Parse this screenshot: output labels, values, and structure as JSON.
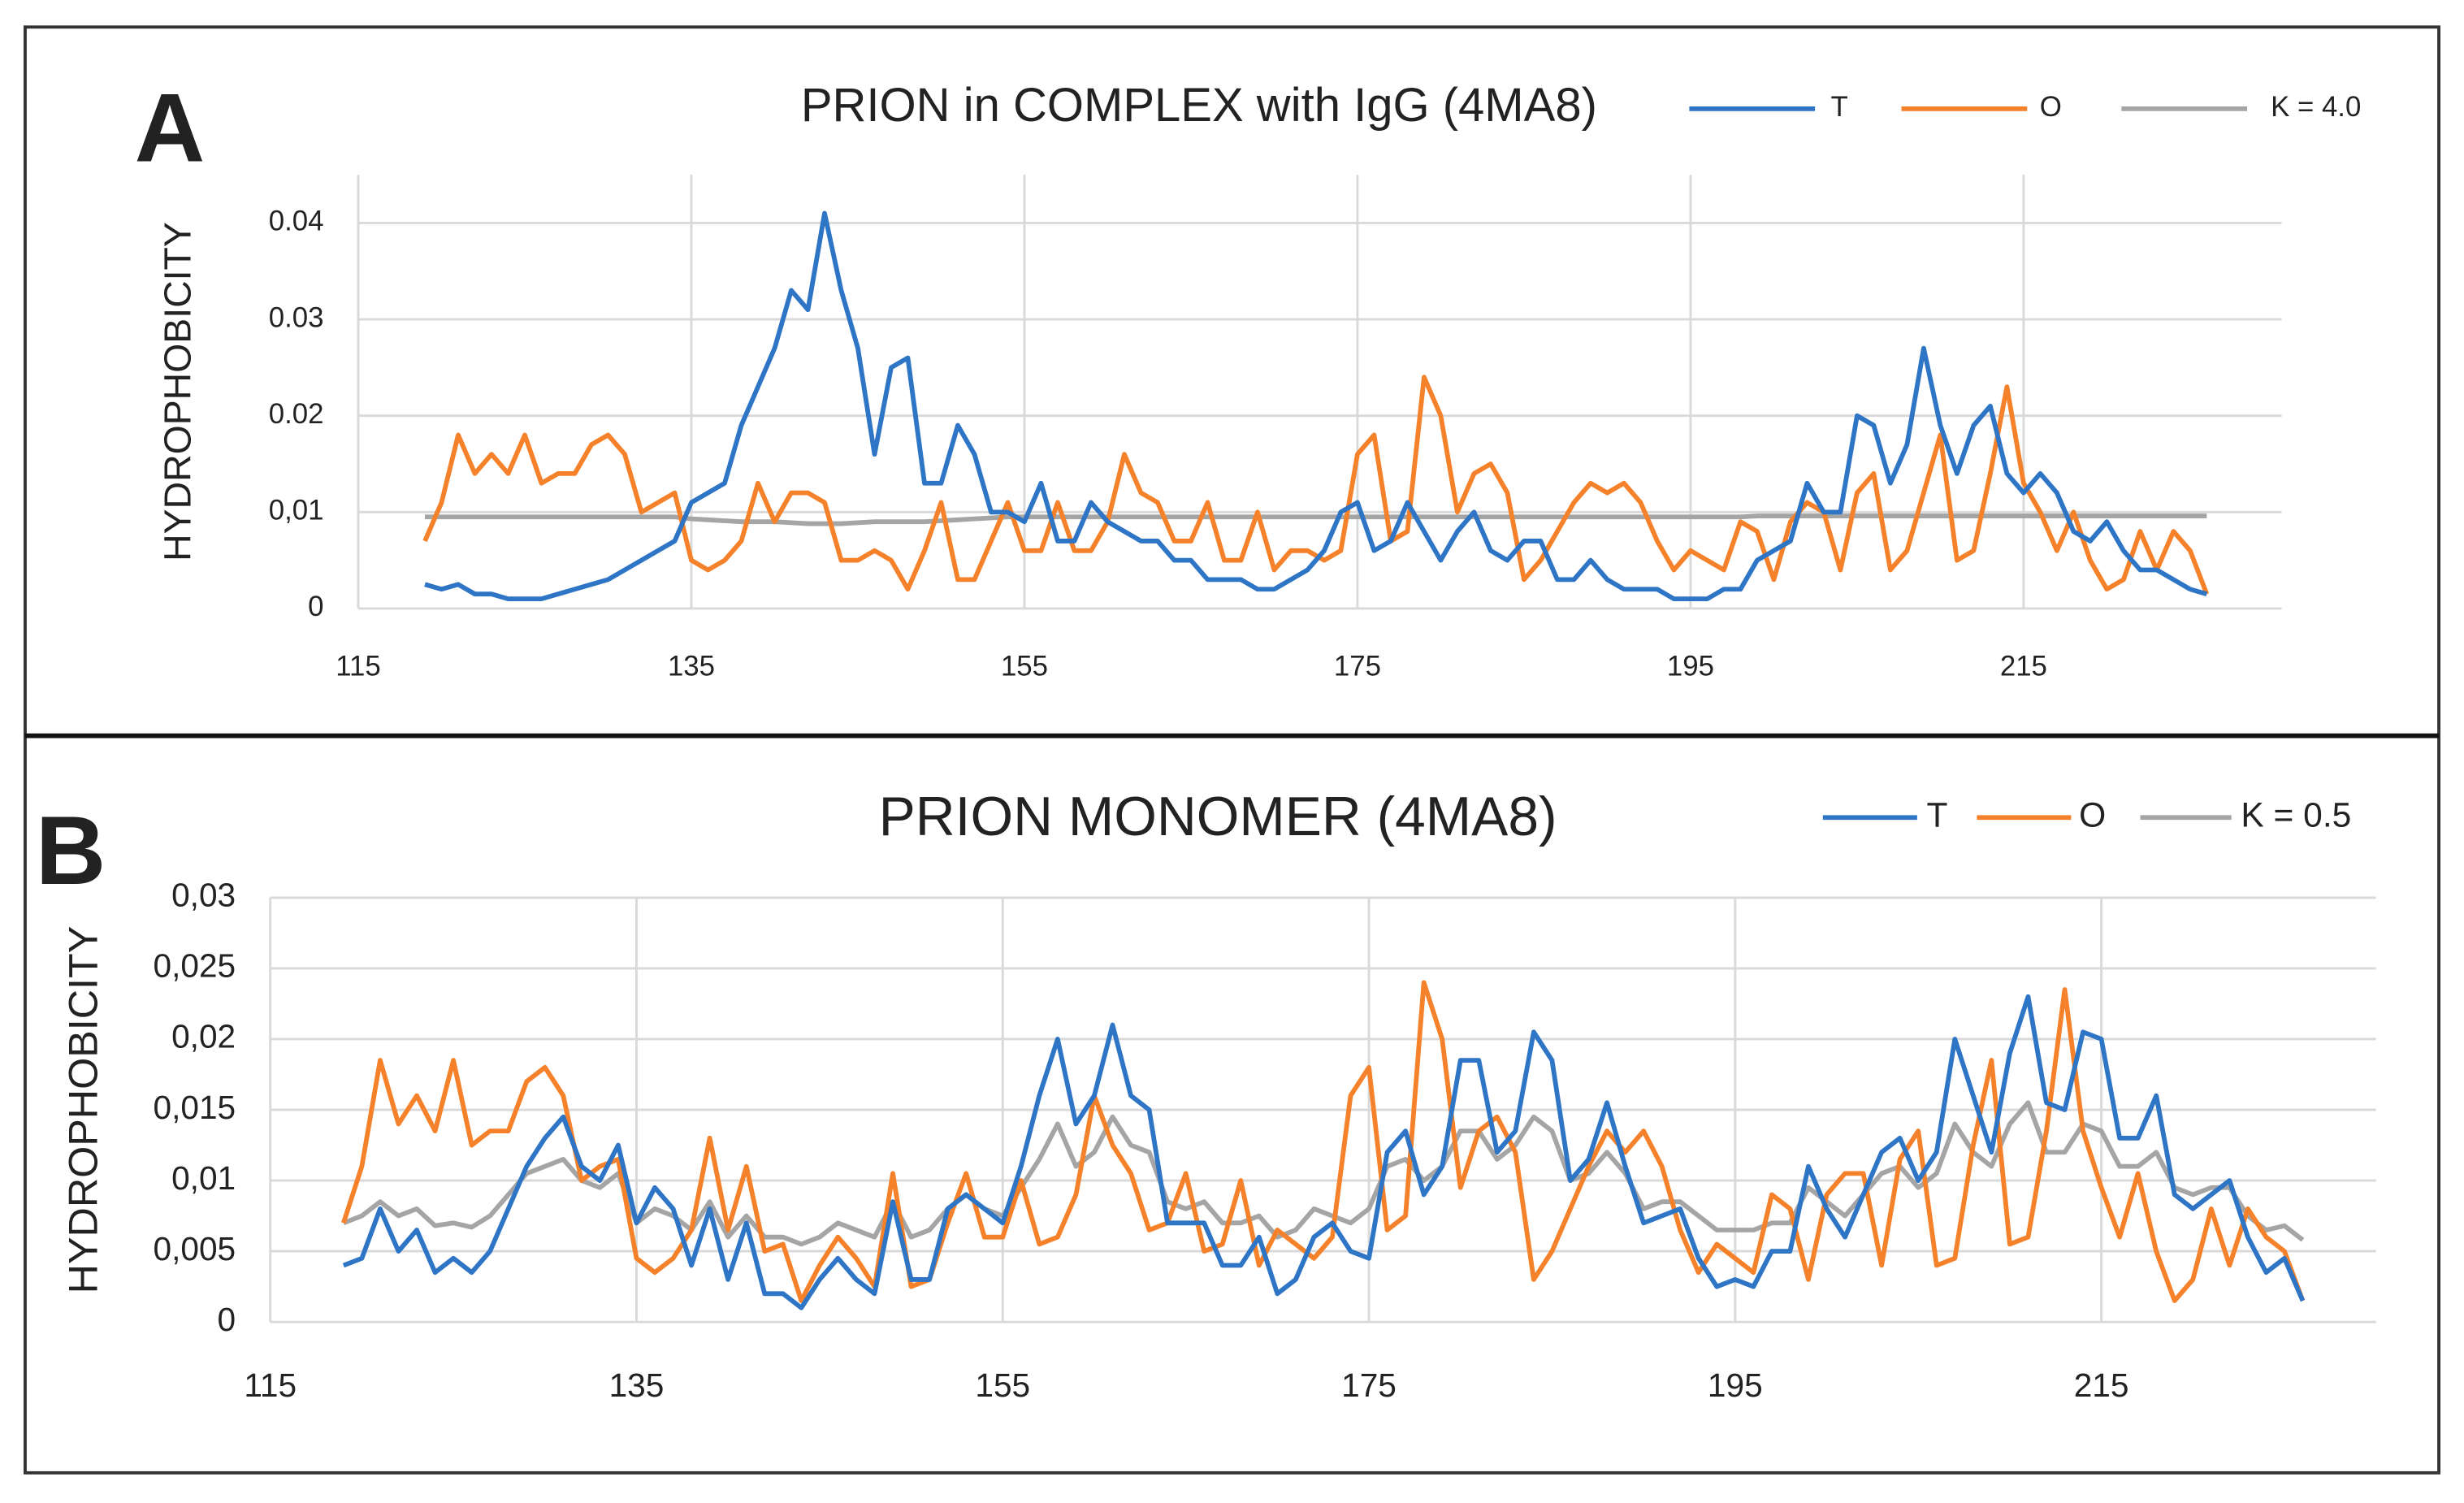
{
  "chart_data": [
    {
      "type": "line",
      "label": "A",
      "title": "PRION in COMPLEX with IgG (4MA8)",
      "y_label": "HYDROPHOBICITY",
      "grid": true,
      "legend": "top-right",
      "x": [
        119,
        120,
        121,
        122,
        123,
        124,
        125,
        126,
        127,
        128,
        129,
        130,
        131,
        132,
        133,
        134,
        135,
        136,
        137,
        138,
        139,
        140,
        141,
        142,
        143,
        144,
        145,
        146,
        147,
        148,
        149,
        150,
        151,
        152,
        153,
        154,
        155,
        156,
        157,
        158,
        159,
        160,
        161,
        162,
        163,
        164,
        165,
        166,
        167,
        168,
        169,
        170,
        171,
        172,
        173,
        174,
        175,
        176,
        177,
        178,
        179,
        180,
        181,
        182,
        183,
        184,
        185,
        186,
        187,
        188,
        189,
        190,
        191,
        192,
        193,
        194,
        195,
        196,
        197,
        198,
        199,
        200,
        201,
        202,
        203,
        204,
        205,
        206,
        207,
        208,
        209,
        210,
        211,
        212,
        213,
        214,
        215,
        216,
        217,
        218,
        219,
        220,
        221,
        222,
        223,
        224,
        225,
        226
      ],
      "series": [
        {
          "name": "T",
          "color": "#2e75c6",
          "values": [
            0.0025,
            0.002,
            0.0025,
            0.0015,
            0.0015,
            0.001,
            0.001,
            0.001,
            0.0015,
            0.002,
            0.0025,
            0.003,
            0.004,
            0.005,
            0.006,
            0.007,
            0.011,
            0.012,
            0.013,
            0.019,
            0.023,
            0.027,
            0.033,
            0.031,
            0.041,
            0.033,
            0.027,
            0.016,
            0.025,
            0.026,
            0.013,
            0.013,
            0.019,
            0.016,
            0.01,
            0.01,
            0.009,
            0.013,
            0.007,
            0.007,
            0.011,
            0.009,
            0.008,
            0.007,
            0.007,
            0.005,
            0.005,
            0.003,
            0.003,
            0.003,
            0.002,
            0.002,
            0.003,
            0.004,
            0.006,
            0.01,
            0.011,
            0.006,
            0.007,
            0.011,
            0.008,
            0.005,
            0.008,
            0.01,
            0.006,
            0.005,
            0.007,
            0.007,
            0.003,
            0.003,
            0.005,
            0.003,
            0.002,
            0.002,
            0.002,
            0.001,
            0.001,
            0.001,
            0.002,
            0.002,
            0.005,
            0.006,
            0.007,
            0.013,
            0.01,
            0.01,
            0.02,
            0.019,
            0.013,
            0.017,
            0.027,
            0.019,
            0.014,
            0.019,
            0.021,
            0.014,
            0.012,
            0.014,
            0.012,
            0.008,
            0.007,
            0.009,
            0.006,
            0.004,
            0.004,
            0.003,
            0.002,
            0.0015
          ]
        },
        {
          "name": "O",
          "color": "#f5822a",
          "values": [
            0.007,
            0.011,
            0.018,
            0.014,
            0.016,
            0.014,
            0.018,
            0.013,
            0.014,
            0.014,
            0.017,
            0.018,
            0.016,
            0.01,
            0.011,
            0.012,
            0.005,
            0.004,
            0.005,
            0.007,
            0.013,
            0.009,
            0.012,
            0.012,
            0.011,
            0.005,
            0.005,
            0.006,
            0.005,
            0.002,
            0.006,
            0.011,
            0.003,
            0.003,
            0.007,
            0.011,
            0.006,
            0.006,
            0.011,
            0.006,
            0.006,
            0.009,
            0.016,
            0.012,
            0.011,
            0.007,
            0.007,
            0.011,
            0.005,
            0.005,
            0.01,
            0.004,
            0.006,
            0.006,
            0.005,
            0.006,
            0.016,
            0.018,
            0.007,
            0.008,
            0.024,
            0.02,
            0.01,
            0.014,
            0.015,
            0.012,
            0.003,
            0.005,
            0.008,
            0.011,
            0.013,
            0.012,
            0.013,
            0.011,
            0.007,
            0.004,
            0.006,
            0.005,
            0.004,
            0.009,
            0.008,
            0.003,
            0.009,
            0.011,
            0.01,
            0.004,
            0.012,
            0.014,
            0.004,
            0.006,
            0.012,
            0.018,
            0.005,
            0.006,
            0.014,
            0.023,
            0.013,
            0.01,
            0.006,
            0.01,
            0.005,
            0.002,
            0.003,
            0.008,
            0.004,
            0.008,
            0.006,
            0.0015
          ]
        },
        {
          "name": "K = 4.0",
          "color": "#a5a5a5",
          "values": [
            0.0095,
            0.0095,
            0.0095,
            0.0095,
            0.0095,
            0.0095,
            0.0095,
            0.0095,
            0.0095,
            0.0095,
            0.0095,
            0.0095,
            0.0095,
            0.0095,
            0.0095,
            0.0095,
            0.0093,
            0.0092,
            0.0091,
            0.009,
            0.009,
            0.009,
            0.0089,
            0.0088,
            0.0088,
            0.0088,
            0.0089,
            0.009,
            0.009,
            0.009,
            0.009,
            0.0091,
            0.0092,
            0.0093,
            0.0094,
            0.0095,
            0.0095,
            0.0095,
            0.0095,
            0.0095,
            0.0095,
            0.0095,
            0.0095,
            0.0095,
            0.0095,
            0.0095,
            0.0095,
            0.0095,
            0.0095,
            0.0095,
            0.0095,
            0.0095,
            0.0095,
            0.0095,
            0.0095,
            0.0095,
            0.0095,
            0.0095,
            0.0095,
            0.0095,
            0.0095,
            0.0095,
            0.0095,
            0.0095,
            0.0095,
            0.0095,
            0.0095,
            0.0095,
            0.0095,
            0.0095,
            0.0095,
            0.0095,
            0.0095,
            0.0095,
            0.0095,
            0.0095,
            0.0095,
            0.0095,
            0.0095,
            0.0095,
            0.0096,
            0.0096,
            0.0096,
            0.0096,
            0.0096,
            0.0096,
            0.0096,
            0.0096,
            0.0096,
            0.0096,
            0.0096,
            0.0096,
            0.0096,
            0.0096,
            0.0096,
            0.0096,
            0.0096,
            0.0096,
            0.0096,
            0.0096,
            0.0096,
            0.0096,
            0.0096,
            0.0096,
            0.0096,
            0.0096,
            0.0096,
            0.0096
          ]
        }
      ],
      "xlim": [
        115,
        230.5
      ],
      "xticks": [
        115,
        135,
        155,
        175,
        195,
        215
      ],
      "ylim": [
        0,
        0.045
      ],
      "yticks": [
        0,
        {
          "value": 0.01,
          "label": "0,01"
        },
        0.02,
        0.03,
        0.04
      ]
    },
    {
      "type": "line",
      "label": "B",
      "title": "PRION MONOMER (4MA8)",
      "y_label": "HYDROPHOBICITY",
      "grid": true,
      "legend": "top-right",
      "x": [
        119,
        120,
        121,
        122,
        123,
        124,
        125,
        126,
        127,
        128,
        129,
        130,
        131,
        132,
        133,
        134,
        135,
        136,
        137,
        138,
        139,
        140,
        141,
        142,
        143,
        144,
        145,
        146,
        147,
        148,
        149,
        150,
        151,
        152,
        153,
        154,
        155,
        156,
        157,
        158,
        159,
        160,
        161,
        162,
        163,
        164,
        165,
        166,
        167,
        168,
        169,
        170,
        171,
        172,
        173,
        174,
        175,
        176,
        177,
        178,
        179,
        180,
        181,
        182,
        183,
        184,
        185,
        186,
        187,
        188,
        189,
        190,
        191,
        192,
        193,
        194,
        195,
        196,
        197,
        198,
        199,
        200,
        201,
        202,
        203,
        204,
        205,
        206,
        207,
        208,
        209,
        210,
        211,
        212,
        213,
        214,
        215,
        216,
        217,
        218,
        219,
        220,
        221,
        222,
        223,
        224,
        225,
        226
      ],
      "series": [
        {
          "name": "T",
          "color": "#2e75c6",
          "values": [
            0.004,
            0.0045,
            0.008,
            0.005,
            0.0065,
            0.0035,
            0.0045,
            0.0035,
            0.005,
            0.008,
            0.011,
            0.013,
            0.0145,
            0.011,
            0.01,
            0.0125,
            0.007,
            0.0095,
            0.008,
            0.004,
            0.008,
            0.003,
            0.007,
            0.002,
            0.002,
            0.001,
            0.003,
            0.0045,
            0.003,
            0.002,
            0.0085,
            0.003,
            0.003,
            0.008,
            0.009,
            0.008,
            0.007,
            0.011,
            0.016,
            0.02,
            0.014,
            0.016,
            0.021,
            0.016,
            0.015,
            0.007,
            0.007,
            0.007,
            0.004,
            0.004,
            0.006,
            0.002,
            0.003,
            0.006,
            0.007,
            0.005,
            0.0045,
            0.012,
            0.0135,
            0.009,
            0.011,
            0.0185,
            0.0185,
            0.012,
            0.0135,
            0.0205,
            0.0185,
            0.01,
            0.0115,
            0.0155,
            0.011,
            0.007,
            0.0075,
            0.008,
            0.0045,
            0.0025,
            0.003,
            0.0025,
            0.005,
            0.005,
            0.011,
            0.008,
            0.006,
            0.009,
            0.012,
            0.013,
            0.01,
            0.012,
            0.02,
            0.016,
            0.012,
            0.019,
            0.023,
            0.0155,
            0.015,
            0.0205,
            0.02,
            0.013,
            0.013,
            0.016,
            0.009,
            0.008,
            0.009,
            0.01,
            0.006,
            0.0035,
            0.0045,
            0.0015
          ]
        },
        {
          "name": "O",
          "color": "#f5822a",
          "values": [
            0.007,
            0.011,
            0.0185,
            0.014,
            0.016,
            0.0135,
            0.0185,
            0.0125,
            0.0135,
            0.0135,
            0.017,
            0.018,
            0.016,
            0.01,
            0.011,
            0.0115,
            0.0045,
            0.0035,
            0.0045,
            0.0065,
            0.013,
            0.0065,
            0.011,
            0.005,
            0.0055,
            0.0015,
            0.004,
            0.006,
            0.0045,
            0.0025,
            0.0105,
            0.0025,
            0.003,
            0.007,
            0.0105,
            0.006,
            0.006,
            0.01,
            0.0055,
            0.006,
            0.009,
            0.016,
            0.0125,
            0.0105,
            0.0065,
            0.007,
            0.0105,
            0.005,
            0.0055,
            0.01,
            0.004,
            0.0065,
            0.0055,
            0.0045,
            0.006,
            0.016,
            0.018,
            0.0065,
            0.0075,
            0.024,
            0.02,
            0.0095,
            0.0135,
            0.0145,
            0.012,
            0.003,
            0.005,
            0.008,
            0.011,
            0.0135,
            0.012,
            0.0135,
            0.011,
            0.0065,
            0.0035,
            0.0055,
            0.0045,
            0.0035,
            0.009,
            0.008,
            0.003,
            0.009,
            0.0105,
            0.0105,
            0.004,
            0.0115,
            0.0135,
            0.004,
            0.0045,
            0.0125,
            0.0185,
            0.0055,
            0.006,
            0.0135,
            0.0235,
            0.0135,
            0.0095,
            0.006,
            0.0105,
            0.005,
            0.0015,
            0.003,
            0.008,
            0.004,
            0.008,
            0.006,
            0.005,
            0.0015
          ]
        },
        {
          "name": "K = 0.5",
          "color": "#a5a5a5",
          "values": [
            0.007,
            0.0075,
            0.0085,
            0.0075,
            0.008,
            0.0068,
            0.007,
            0.0067,
            0.0075,
            0.009,
            0.0105,
            0.011,
            0.0115,
            0.01,
            0.0095,
            0.0105,
            0.007,
            0.008,
            0.0075,
            0.0065,
            0.0085,
            0.006,
            0.0075,
            0.006,
            0.006,
            0.0055,
            0.006,
            0.007,
            0.0065,
            0.006,
            0.0085,
            0.006,
            0.0065,
            0.008,
            0.009,
            0.008,
            0.0075,
            0.0095,
            0.0115,
            0.014,
            0.011,
            0.012,
            0.0145,
            0.0125,
            0.012,
            0.0085,
            0.008,
            0.0085,
            0.007,
            0.007,
            0.0075,
            0.006,
            0.0065,
            0.008,
            0.0075,
            0.007,
            0.008,
            0.011,
            0.0115,
            0.01,
            0.011,
            0.0135,
            0.0135,
            0.0115,
            0.0125,
            0.0145,
            0.0135,
            0.01,
            0.0105,
            0.012,
            0.0105,
            0.008,
            0.0085,
            0.0085,
            0.0075,
            0.0065,
            0.0065,
            0.0065,
            0.007,
            0.007,
            0.0095,
            0.0085,
            0.0075,
            0.009,
            0.0105,
            0.011,
            0.0095,
            0.0105,
            0.014,
            0.012,
            0.011,
            0.014,
            0.0155,
            0.012,
            0.012,
            0.014,
            0.0135,
            0.011,
            0.011,
            0.012,
            0.0095,
            0.009,
            0.0095,
            0.0095,
            0.0075,
            0.0065,
            0.0068,
            0.0058
          ]
        }
      ],
      "xlim": [
        115,
        230
      ],
      "xticks": [
        115,
        135,
        155,
        175,
        195,
        215
      ],
      "ylim": [
        0,
        0.03
      ],
      "yticks": [
        0,
        {
          "value": 0.005,
          "label": "0,005"
        },
        {
          "value": 0.01,
          "label": "0,01"
        },
        {
          "value": 0.015,
          "label": "0,015"
        },
        {
          "value": 0.02,
          "label": "0,02"
        },
        {
          "value": 0.025,
          "label": "0,025"
        },
        {
          "value": 0.03,
          "label": "0,03"
        }
      ]
    }
  ]
}
